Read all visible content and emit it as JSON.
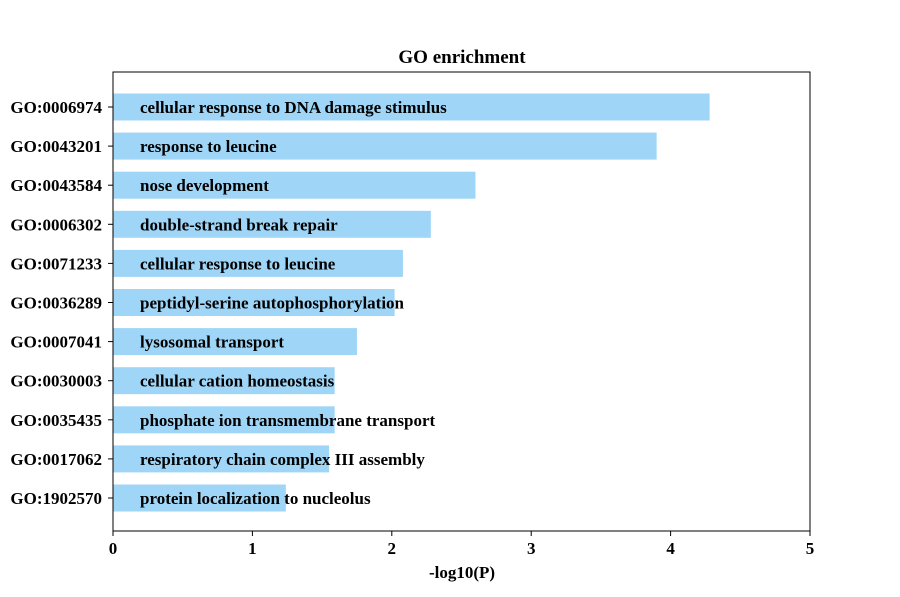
{
  "chart_data": {
    "type": "bar",
    "orientation": "horizontal",
    "title": "GO enrichment",
    "xlabel": "-log10(P)",
    "ylabel": "",
    "xlim": [
      0,
      5
    ],
    "xticks": [
      "0",
      "1",
      "2",
      "3",
      "4",
      "5"
    ],
    "bar_color": "#9fd6f8",
    "grid": false,
    "categories": [
      "GO:0006974",
      "GO:0043201",
      "GO:0043584",
      "GO:0006302",
      "GO:0071233",
      "GO:0036289",
      "GO:0007041",
      "GO:0030003",
      "GO:0035435",
      "GO:0017062",
      "GO:1902570"
    ],
    "descriptions": [
      "cellular response to DNA damage stimulus",
      "response to leucine",
      "nose development",
      "double-strand break repair",
      "cellular response to leucine",
      "peptidyl-serine autophosphorylation",
      "lysosomal transport",
      "cellular cation homeostasis",
      "phosphate ion transmembrane transport",
      "respiratory chain complex III assembly",
      "protein localization to nucleolus"
    ],
    "values": [
      4.28,
      3.9,
      2.6,
      2.28,
      2.08,
      2.02,
      1.75,
      1.59,
      1.59,
      1.55,
      1.24
    ]
  }
}
